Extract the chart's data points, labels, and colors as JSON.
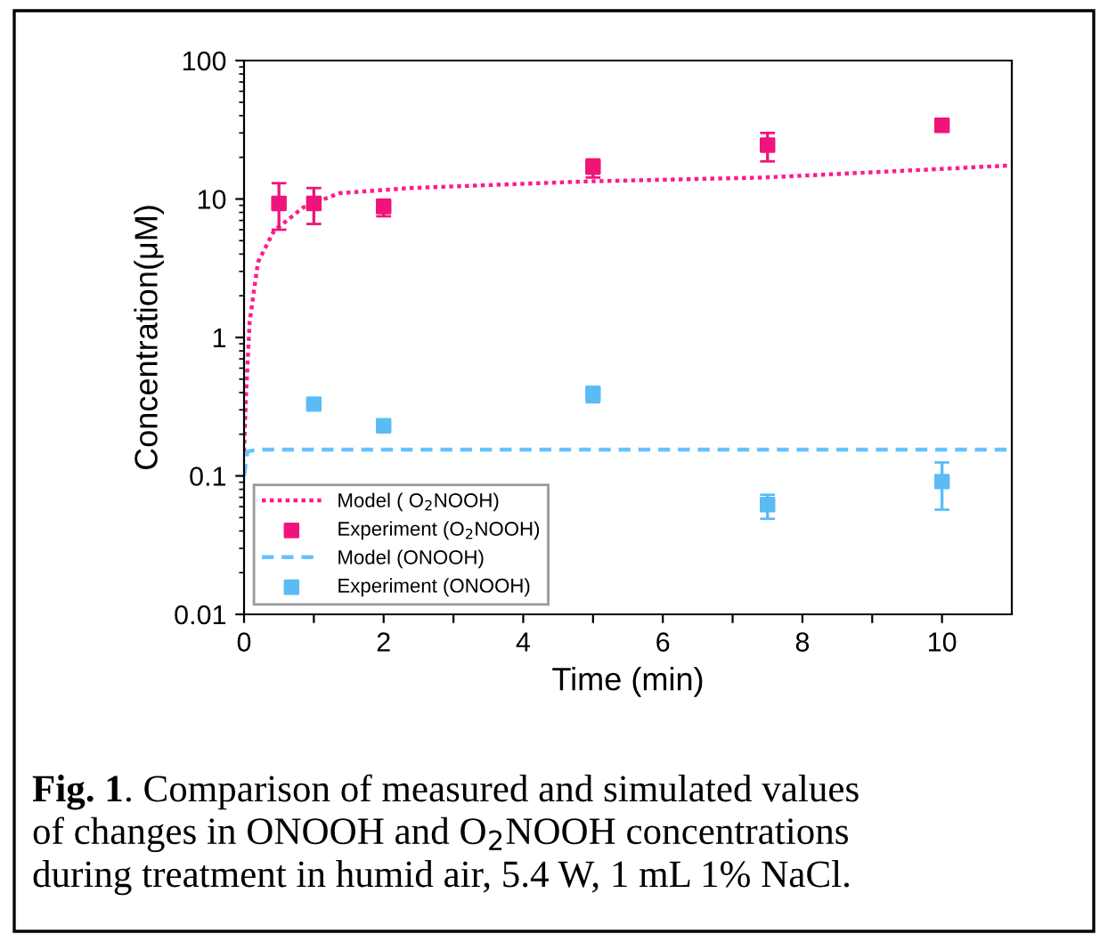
{
  "chart_data": {
    "type": "scatter",
    "xlabel": "Time (min)",
    "ylabel": "Concentration(μM)",
    "log": "y",
    "xlim": [
      0,
      11
    ],
    "ylim": [
      0.01,
      100
    ],
    "xticks": [
      0,
      {
        "value": 1,
        "label": null
      },
      2,
      {
        "value": 3,
        "label": null
      },
      4,
      {
        "value": 5,
        "label": null
      },
      6,
      {
        "value": 7,
        "label": null
      },
      8,
      {
        "value": 9,
        "label": null
      },
      10
    ],
    "yticks": [
      0.01,
      0.1,
      1,
      10,
      100
    ],
    "grid": false,
    "legend": "bottom left",
    "series": [
      {
        "name": "Model ( O$_{2}$NOOH)",
        "type": "line",
        "line_style": "dotted",
        "marker": "none",
        "color": "#ff1a8c",
        "x": [
          0,
          0.03,
          0.08,
          0.2,
          0.43,
          0.85,
          1.36,
          2.38,
          4.92,
          7.46,
          10,
          11
        ],
        "values": [
          0.15,
          0.4,
          1.3,
          3.5,
          5.9,
          8.7,
          11,
          12,
          13.4,
          14.3,
          16.5,
          17.5
        ]
      },
      {
        "name": "Experiment (O$_{2}$NOOH)",
        "marker": "square",
        "color": "#f0147a",
        "x": [
          0.5,
          1,
          2,
          5,
          7.5,
          10
        ],
        "values": [
          9.3,
          9.3,
          8.8,
          17,
          24.5,
          34
        ],
        "errors": [
          [
            6,
            13
          ],
          [
            6.6,
            12
          ],
          [
            7.5,
            9.9
          ],
          [
            14.3,
            19.3
          ],
          [
            18.7,
            30
          ],
          null
        ]
      },
      {
        "name": "Model (ONOOH)",
        "type": "line",
        "line_style": "dashed",
        "marker": "none",
        "color": "#66c2ff",
        "x": [
          0,
          0.05,
          0.2,
          5.5,
          11
        ],
        "values": [
          0.1,
          0.15,
          0.155,
          0.155,
          0.155
        ]
      },
      {
        "name": "Experiment (ONOOH)",
        "marker": "square",
        "color": "#5bbcf5",
        "x": [
          1,
          2,
          5,
          7.5,
          10
        ],
        "values": [
          0.33,
          0.23,
          0.39,
          0.062,
          0.091
        ],
        "errors": [
          null,
          null,
          [
            0.34,
            0.44
          ],
          [
            0.049,
            0.073
          ],
          [
            0.057,
            0.125
          ]
        ]
      }
    ],
    "annotations": [
      "Fig. 1",
      ". Comparison of measured and simulated values",
      "of changes in ONOOH and O$_{2}$NOOH concentrations",
      "during treatment in humid air, 5.4 W, 1 mL 1% NaCl."
    ]
  }
}
